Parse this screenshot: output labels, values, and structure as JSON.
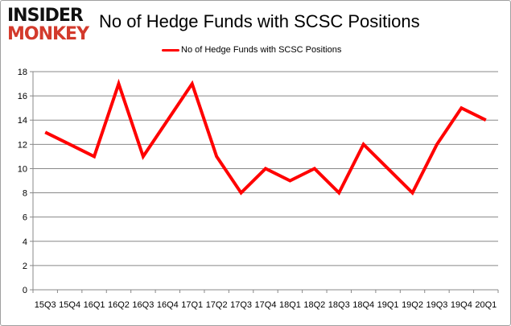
{
  "logo": {
    "line1": "INSIDER",
    "line2": "MONKEY"
  },
  "chart_data": {
    "type": "line",
    "title": "No of Hedge Funds with SCSC Positions",
    "xlabel": "",
    "ylabel": "",
    "categories": [
      "15Q3",
      "15Q4",
      "16Q1",
      "16Q2",
      "16Q3",
      "16Q4",
      "17Q1",
      "17Q2",
      "17Q3",
      "17Q4",
      "18Q1",
      "18Q2",
      "18Q3",
      "18Q4",
      "19Q1",
      "19Q2",
      "19Q3",
      "19Q4",
      "20Q1"
    ],
    "series": [
      {
        "name": "No of Hedge Funds with SCSC Positions",
        "color": "#ff0000",
        "values": [
          13,
          12,
          11,
          17,
          11,
          14,
          17,
          11,
          8,
          10,
          9,
          10,
          8,
          12,
          10,
          8,
          12,
          15,
          14
        ]
      }
    ],
    "ylim": [
      0,
      18
    ],
    "yticks": [
      0,
      2,
      4,
      6,
      8,
      10,
      12,
      14,
      16,
      18
    ],
    "grid": true,
    "legend": "top-center"
  }
}
